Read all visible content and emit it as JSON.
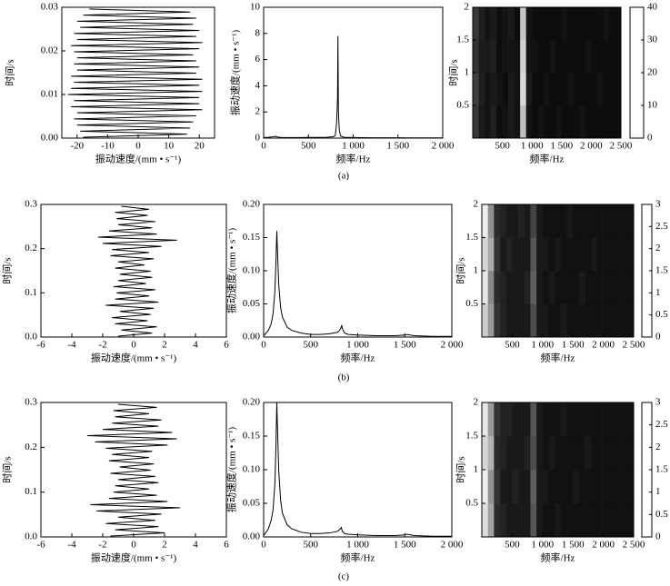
{
  "chart_data": [
    {
      "type": "line",
      "value_axis": "x",
      "color": "#000000",
      "xlabel": "振动速度/(mm • s⁻¹)",
      "ylabel": "时间/s",
      "y": [
        0.0002,
        0.0009,
        0.0016,
        0.0023,
        0.003,
        0.0037,
        0.0044,
        0.0051,
        0.0058,
        0.0065,
        0.0072,
        0.0079,
        0.0086,
        0.0093,
        0.01,
        0.0107,
        0.0114,
        0.0121,
        0.0128,
        0.0135,
        0.0142,
        0.0149,
        0.0156,
        0.0163,
        0.017,
        0.0177,
        0.0184,
        0.0191,
        0.0198,
        0.0205,
        0.0212,
        0.0219,
        0.0226,
        0.0233,
        0.024,
        0.0247,
        0.0254,
        0.0261,
        0.0268,
        0.0275,
        0.0282,
        0.0289,
        0.0296
      ],
      "values": [
        -18,
        16,
        -19,
        17,
        -20,
        18,
        -21,
        19,
        -20,
        21,
        -22,
        20,
        -21,
        20,
        -23,
        21,
        -22,
        20,
        -21,
        21,
        -22,
        19,
        -20,
        20,
        -21,
        19,
        -20,
        18,
        -21,
        20,
        -22,
        21,
        -20,
        19,
        -21,
        20,
        -19,
        18,
        -20,
        19,
        -18,
        17,
        -16
      ],
      "xlim": [
        -25,
        25
      ],
      "xticks": [
        -20,
        -10,
        0,
        10,
        20
      ],
      "ylim": [
        0,
        0.03
      ],
      "yticks": [
        {
          "value": 0,
          "label": "0.00"
        },
        0.01,
        0.02,
        0.03
      ]
    },
    {
      "type": "line",
      "color": "#000000",
      "xlabel": "频率/Hz",
      "ylabel": "振动速度/(mm • s⁻¹)",
      "x": [
        0,
        20,
        50,
        80,
        100,
        120,
        130,
        140,
        150,
        160,
        180,
        200,
        250,
        300,
        400,
        500,
        600,
        700,
        780,
        800,
        815,
        825,
        830,
        835,
        845,
        860,
        900,
        1000,
        1200,
        1400,
        1500,
        1520,
        1600,
        1800,
        2000
      ],
      "values": [
        0.05,
        0.05,
        0.06,
        0.08,
        0.1,
        0.12,
        0.13,
        0.12,
        0.1,
        0.08,
        0.06,
        0.05,
        0.04,
        0.04,
        0.04,
        0.05,
        0.05,
        0.06,
        0.1,
        0.2,
        1.2,
        3,
        7.8,
        2,
        0.6,
        0.15,
        0.06,
        0.04,
        0.03,
        0.03,
        0.03,
        0.03,
        0.02,
        0.02,
        0.02
      ],
      "xlim": [
        0,
        2000
      ],
      "xticks": [
        0,
        500,
        {
          "value": 1000,
          "label": "1 000"
        },
        {
          "value": 1500,
          "label": "1 500"
        },
        {
          "value": 2000,
          "label": "2 000"
        }
      ],
      "ylim": [
        0,
        10
      ],
      "yticks": [
        0,
        2,
        4,
        6,
        8,
        10
      ]
    },
    {
      "type": "heatmap",
      "colormap": "gray",
      "xlabel": "频率/Hz",
      "ylabel": "时间/s",
      "xbins": [
        0,
        100,
        200,
        300,
        400,
        500,
        600,
        700,
        800,
        900,
        1000,
        1100,
        1200,
        1300,
        1400,
        1500,
        1600,
        1700,
        1800,
        1900,
        2000,
        2100,
        2200,
        2300,
        2400,
        2500
      ],
      "ybins": [
        0,
        0.5,
        1,
        1.5,
        2
      ],
      "z": [
        [
          9,
          4,
          3,
          5,
          2,
          3,
          4,
          3,
          30,
          3,
          2,
          3,
          2,
          2,
          3,
          2,
          2,
          2,
          3,
          2,
          2,
          2,
          2,
          2,
          2
        ],
        [
          10,
          5,
          3,
          4,
          3,
          2,
          4,
          3,
          34,
          4,
          2,
          2,
          3,
          2,
          2,
          2,
          3,
          2,
          2,
          2,
          2,
          3,
          2,
          2,
          2
        ],
        [
          8,
          4,
          4,
          5,
          2,
          3,
          3,
          3,
          33,
          3,
          3,
          2,
          2,
          3,
          2,
          2,
          2,
          2,
          2,
          3,
          2,
          2,
          2,
          2,
          2
        ],
        [
          9,
          5,
          3,
          4,
          2,
          3,
          4,
          2,
          31,
          3,
          2,
          2,
          2,
          2,
          2,
          3,
          2,
          2,
          2,
          2,
          2,
          2,
          3,
          2,
          2
        ]
      ],
      "xlim": [
        0,
        2500
      ],
      "xticks": [
        500,
        {
          "value": 1000,
          "label": "1 000"
        },
        {
          "value": 1500,
          "label": "1 500"
        },
        {
          "value": 2000,
          "label": "2 000"
        },
        {
          "value": 2500,
          "label": "2 500"
        }
      ],
      "ylim": [
        0,
        2
      ],
      "yticks": [
        0.5,
        1,
        1.5,
        2
      ],
      "clim": [
        0,
        40
      ],
      "cticks": [
        0,
        10,
        20,
        30,
        40
      ]
    },
    {
      "type": "line",
      "value_axis": "x",
      "color": "#000000",
      "xlabel": "振动速度/(mm • s⁻¹)",
      "ylabel": "时间/s",
      "y": [
        0.002,
        0.009,
        0.016,
        0.023,
        0.03,
        0.037,
        0.044,
        0.051,
        0.058,
        0.065,
        0.072,
        0.079,
        0.086,
        0.093,
        0.1,
        0.107,
        0.114,
        0.121,
        0.128,
        0.135,
        0.142,
        0.149,
        0.156,
        0.163,
        0.17,
        0.177,
        0.184,
        0.191,
        0.198,
        0.205,
        0.212,
        0.219,
        0.226,
        0.233,
        0.24,
        0.247,
        0.254,
        0.261,
        0.268,
        0.275,
        0.282,
        0.289,
        0.296
      ],
      "values": [
        -1,
        1.2,
        -0.8,
        1.5,
        -1.2,
        0.9,
        -1.4,
        1.1,
        -0.9,
        1.3,
        -1.8,
        1.6,
        -1.2,
        1.0,
        -1.1,
        1.4,
        -1.3,
        0.8,
        -1.0,
        1.2,
        -0.9,
        1.1,
        -1.2,
        0.7,
        -1.0,
        1.3,
        -1.5,
        1.0,
        -1.4,
        1.8,
        -2.0,
        2.8,
        -2.3,
        1.5,
        -1.6,
        1.2,
        -1.0,
        1.4,
        -1.1,
        0.9,
        -1.2,
        1.0,
        -0.8
      ],
      "xlim": [
        -6,
        6
      ],
      "xticks": [
        -6,
        -4,
        -2,
        0,
        2,
        4,
        6
      ],
      "ylim": [
        0,
        0.3
      ],
      "yticks": [
        {
          "value": 0,
          "label": "0.0"
        },
        0.1,
        0.2,
        0.3
      ]
    },
    {
      "type": "line",
      "color": "#000000",
      "xlabel": "频率/Hz",
      "ylabel": "振动速度/(mm • s⁻¹)",
      "x": [
        0,
        20,
        50,
        80,
        100,
        120,
        130,
        140,
        150,
        160,
        180,
        200,
        250,
        300,
        400,
        500,
        600,
        700,
        780,
        800,
        815,
        825,
        830,
        835,
        845,
        860,
        900,
        1000,
        1200,
        1400,
        1500,
        1520,
        1600,
        1800,
        2000
      ],
      "values": [
        0.002,
        0.005,
        0.01,
        0.02,
        0.035,
        0.07,
        0.11,
        0.16,
        0.12,
        0.08,
        0.045,
        0.03,
        0.015,
        0.01,
        0.006,
        0.004,
        0.004,
        0.005,
        0.007,
        0.009,
        0.012,
        0.015,
        0.018,
        0.014,
        0.01,
        0.006,
        0.004,
        0.003,
        0.002,
        0.002,
        0.003,
        0.004,
        0.002,
        0.001,
        0.001
      ],
      "xlim": [
        0,
        2000
      ],
      "xticks": [
        0,
        500,
        {
          "value": 1000,
          "label": "1 000"
        },
        {
          "value": 1500,
          "label": "1 500"
        },
        {
          "value": 2000,
          "label": "2 000"
        }
      ],
      "ylim": [
        0,
        0.2
      ],
      "yticks": [
        {
          "value": 0,
          "label": "0.00"
        },
        0.05,
        {
          "value": 0.1,
          "label": "0.10"
        },
        0.15,
        {
          "value": 0.2,
          "label": "0.20"
        }
      ]
    },
    {
      "type": "heatmap",
      "colormap": "gray",
      "xlabel": "频率/Hz",
      "ylabel": "时间/s",
      "xbins": [
        0,
        100,
        200,
        300,
        400,
        500,
        600,
        700,
        800,
        900,
        1000,
        1100,
        1200,
        1300,
        1400,
        1500,
        1600,
        1700,
        1800,
        1900,
        2000,
        2100,
        2200,
        2300,
        2400,
        2500
      ],
      "ybins": [
        0,
        0.5,
        1,
        1.5,
        2
      ],
      "z": [
        [
          2.4,
          1.8,
          0.6,
          0.4,
          0.3,
          0.3,
          0.3,
          0.3,
          0.9,
          0.3,
          0.3,
          0.2,
          0.2,
          0.3,
          0.2,
          0.2,
          0.2,
          0.2,
          0.2,
          0.2,
          0.2,
          0.2,
          0.2,
          0.2,
          0.2
        ],
        [
          2.7,
          1.6,
          0.5,
          0.4,
          0.3,
          0.3,
          0.3,
          0.4,
          1.1,
          0.3,
          0.2,
          0.3,
          0.2,
          0.2,
          0.2,
          0.2,
          0.3,
          0.2,
          0.2,
          0.2,
          0.2,
          0.2,
          0.2,
          0.2,
          0.2
        ],
        [
          2.5,
          2.0,
          0.6,
          0.3,
          0.4,
          0.3,
          0.3,
          0.3,
          1.0,
          0.3,
          0.3,
          0.2,
          0.3,
          0.2,
          0.2,
          0.2,
          0.2,
          0.2,
          0.3,
          0.2,
          0.2,
          0.2,
          0.2,
          0.2,
          0.2
        ],
        [
          2.8,
          1.7,
          0.5,
          0.4,
          0.3,
          0.3,
          0.4,
          0.3,
          0.8,
          0.3,
          0.2,
          0.2,
          0.2,
          0.2,
          0.3,
          0.2,
          0.2,
          0.2,
          0.2,
          0.2,
          0.2,
          0.2,
          0.2,
          0.2,
          0.2
        ]
      ],
      "xlim": [
        0,
        2500
      ],
      "xticks": [
        500,
        {
          "value": 1000,
          "label": "1 000"
        },
        {
          "value": 1500,
          "label": "1 500"
        },
        {
          "value": 2000,
          "label": "2 000"
        },
        {
          "value": 2500,
          "label": "2 500"
        }
      ],
      "ylim": [
        0,
        2
      ],
      "yticks": [
        0.5,
        1,
        1.5,
        2
      ],
      "clim": [
        0,
        3
      ],
      "cticks": [
        0,
        0.5,
        1,
        1.5,
        2,
        2.5,
        3
      ]
    },
    {
      "type": "line",
      "value_axis": "x",
      "color": "#000000",
      "xlabel": "振动速度/(mm • s⁻¹)",
      "ylabel": "时间/s",
      "y": [
        0.002,
        0.009,
        0.016,
        0.023,
        0.03,
        0.037,
        0.044,
        0.051,
        0.058,
        0.065,
        0.072,
        0.079,
        0.086,
        0.093,
        0.1,
        0.107,
        0.114,
        0.121,
        0.128,
        0.135,
        0.142,
        0.149,
        0.156,
        0.163,
        0.17,
        0.177,
        0.184,
        0.191,
        0.198,
        0.205,
        0.212,
        0.219,
        0.226,
        0.233,
        0.24,
        0.247,
        0.254,
        0.261,
        0.268,
        0.275,
        0.282,
        0.289,
        0.296
      ],
      "values": [
        -1.5,
        2.0,
        -1.2,
        1.6,
        -1.8,
        1.4,
        -1.0,
        1.8,
        -2.4,
        3.0,
        -2.8,
        2.2,
        -1.6,
        1.5,
        -1.3,
        1.0,
        -1.2,
        1.6,
        -1.0,
        1.4,
        -1.5,
        1.1,
        -0.9,
        1.3,
        -1.6,
        1.0,
        -1.4,
        1.2,
        -1.8,
        2.2,
        -2.5,
        2.8,
        -3.0,
        2.5,
        -2.0,
        1.6,
        -1.4,
        1.8,
        -1.2,
        1.0,
        -1.3,
        1.5,
        -1.0
      ],
      "xlim": [
        -6,
        6
      ],
      "xticks": [
        -6,
        -4,
        -2,
        0,
        2,
        4,
        6
      ],
      "ylim": [
        0,
        0.3
      ],
      "yticks": [
        {
          "value": 0,
          "label": "0.0"
        },
        0.1,
        0.2,
        0.3
      ]
    },
    {
      "type": "line",
      "color": "#000000",
      "xlabel": "频率/Hz",
      "ylabel": "振动速度/(mm • s⁻¹)",
      "x": [
        0,
        20,
        50,
        80,
        100,
        120,
        130,
        140,
        150,
        160,
        180,
        200,
        250,
        300,
        400,
        500,
        600,
        700,
        780,
        800,
        815,
        825,
        830,
        835,
        845,
        860,
        900,
        1000,
        1200,
        1400,
        1500,
        1520,
        1600,
        1800,
        2000
      ],
      "values": [
        0.002,
        0.006,
        0.012,
        0.025,
        0.04,
        0.08,
        0.13,
        0.2,
        0.15,
        0.1,
        0.055,
        0.035,
        0.018,
        0.012,
        0.007,
        0.005,
        0.005,
        0.006,
        0.008,
        0.01,
        0.012,
        0.014,
        0.012,
        0.009,
        0.007,
        0.005,
        0.004,
        0.003,
        0.002,
        0.002,
        0.003,
        0.004,
        0.002,
        0.001,
        0.001
      ],
      "xlim": [
        0,
        2000
      ],
      "xticks": [
        0,
        500,
        {
          "value": 1000,
          "label": "1 000"
        },
        {
          "value": 1500,
          "label": "1 500"
        },
        {
          "value": 2000,
          "label": "2 000"
        }
      ],
      "ylim": [
        0,
        0.2
      ],
      "yticks": [
        {
          "value": 0,
          "label": "0.00"
        },
        0.05,
        {
          "value": 0.1,
          "label": "0.10"
        },
        0.15,
        {
          "value": 0.2,
          "label": "0.20"
        }
      ]
    },
    {
      "type": "heatmap",
      "colormap": "gray",
      "xlabel": "频率/Hz",
      "ylabel": "时间/s",
      "xbins": [
        0,
        100,
        200,
        300,
        400,
        500,
        600,
        700,
        800,
        900,
        1000,
        1100,
        1200,
        1300,
        1400,
        1500,
        1600,
        1700,
        1800,
        1900,
        2000,
        2100,
        2200,
        2300,
        2400,
        2500
      ],
      "ybins": [
        0,
        0.5,
        1,
        1.5,
        2
      ],
      "z": [
        [
          2.6,
          1.9,
          0.5,
          0.4,
          0.3,
          0.3,
          0.3,
          0.3,
          1.0,
          0.3,
          0.2,
          0.2,
          0.3,
          0.2,
          0.2,
          0.2,
          0.2,
          0.2,
          0.2,
          0.2,
          0.2,
          0.2,
          0.2,
          0.2,
          0.2
        ],
        [
          2.8,
          1.7,
          0.6,
          0.3,
          0.3,
          0.4,
          0.3,
          0.3,
          1.1,
          0.3,
          0.3,
          0.2,
          0.2,
          0.2,
          0.2,
          0.3,
          0.2,
          0.2,
          0.2,
          0.2,
          0.2,
          0.2,
          0.2,
          0.2,
          0.2
        ],
        [
          2.5,
          2.1,
          0.5,
          0.4,
          0.3,
          0.3,
          0.3,
          0.4,
          0.9,
          0.3,
          0.2,
          0.3,
          0.2,
          0.2,
          0.2,
          0.2,
          0.2,
          0.3,
          0.2,
          0.2,
          0.2,
          0.2,
          0.2,
          0.2,
          0.2
        ],
        [
          2.7,
          1.8,
          0.6,
          0.4,
          0.4,
          0.3,
          0.3,
          0.3,
          1.0,
          0.3,
          0.2,
          0.2,
          0.2,
          0.3,
          0.2,
          0.2,
          0.2,
          0.2,
          0.2,
          0.2,
          0.2,
          0.2,
          0.2,
          0.2,
          0.2
        ]
      ],
      "xlim": [
        0,
        2500
      ],
      "xticks": [
        500,
        {
          "value": 1000,
          "label": "1 000"
        },
        {
          "value": 1500,
          "label": "1 500"
        },
        {
          "value": 2000,
          "label": "2 000"
        },
        {
          "value": 2500,
          "label": "2 500"
        }
      ],
      "ylim": [
        0,
        2
      ],
      "yticks": [
        0.5,
        1,
        1.5,
        2
      ],
      "clim": [
        0,
        3
      ],
      "cticks": [
        0,
        0.5,
        1,
        1.5,
        2,
        2.5,
        3
      ]
    }
  ],
  "captions": [
    "(a)",
    "(b)",
    "(c)"
  ]
}
